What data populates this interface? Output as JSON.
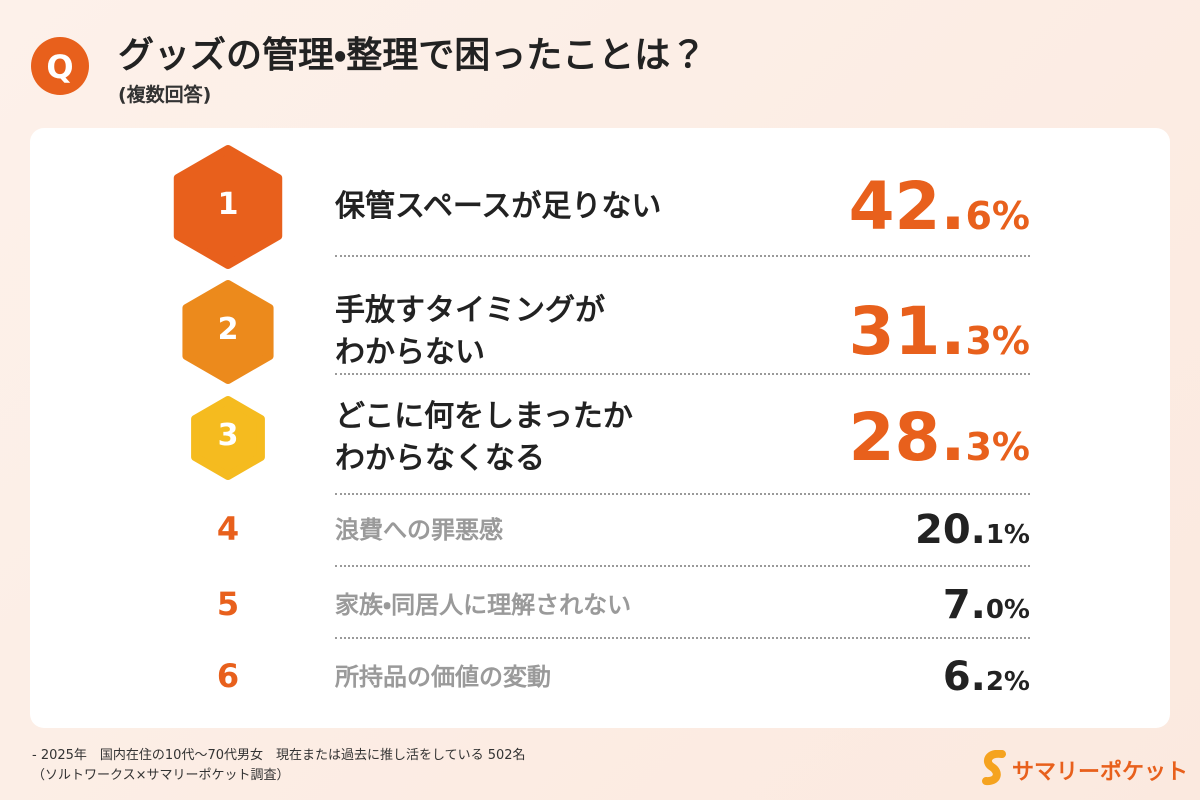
{
  "header": {
    "icon": "Q",
    "title": "グッズの管理・整理で困ったことは？",
    "subtitle": "(複数回答)"
  },
  "items": [
    {
      "rank": "1",
      "label": [
        "保管スペースが足りない"
      ],
      "value": "42.6%"
    },
    {
      "rank": "2",
      "label": [
        "手放すタイミングが",
        "わからない"
      ],
      "value": "31.3%"
    },
    {
      "rank": "3",
      "label": [
        "どこに何をしまったか",
        "わからなくなる"
      ],
      "value": "28.3%"
    },
    {
      "rank": "4",
      "label": [
        "浪費への罪悪感"
      ],
      "value": "20.1%"
    },
    {
      "rank": "5",
      "label": [
        "家族・同居人に理解されない"
      ],
      "value": "7.0%"
    },
    {
      "rank": "6",
      "label": [
        "所持品の価値の変動"
      ],
      "value": "6.2%"
    }
  ],
  "footer": {
    "lines": [
      "- 2025年　国内在住の10代～70代男女　現在または過去に推し活をしている 502名",
      "（ソルトワークス×サマリーポケット調査）"
    ]
  },
  "logo": {
    "text": "サマリーポケット"
  }
}
